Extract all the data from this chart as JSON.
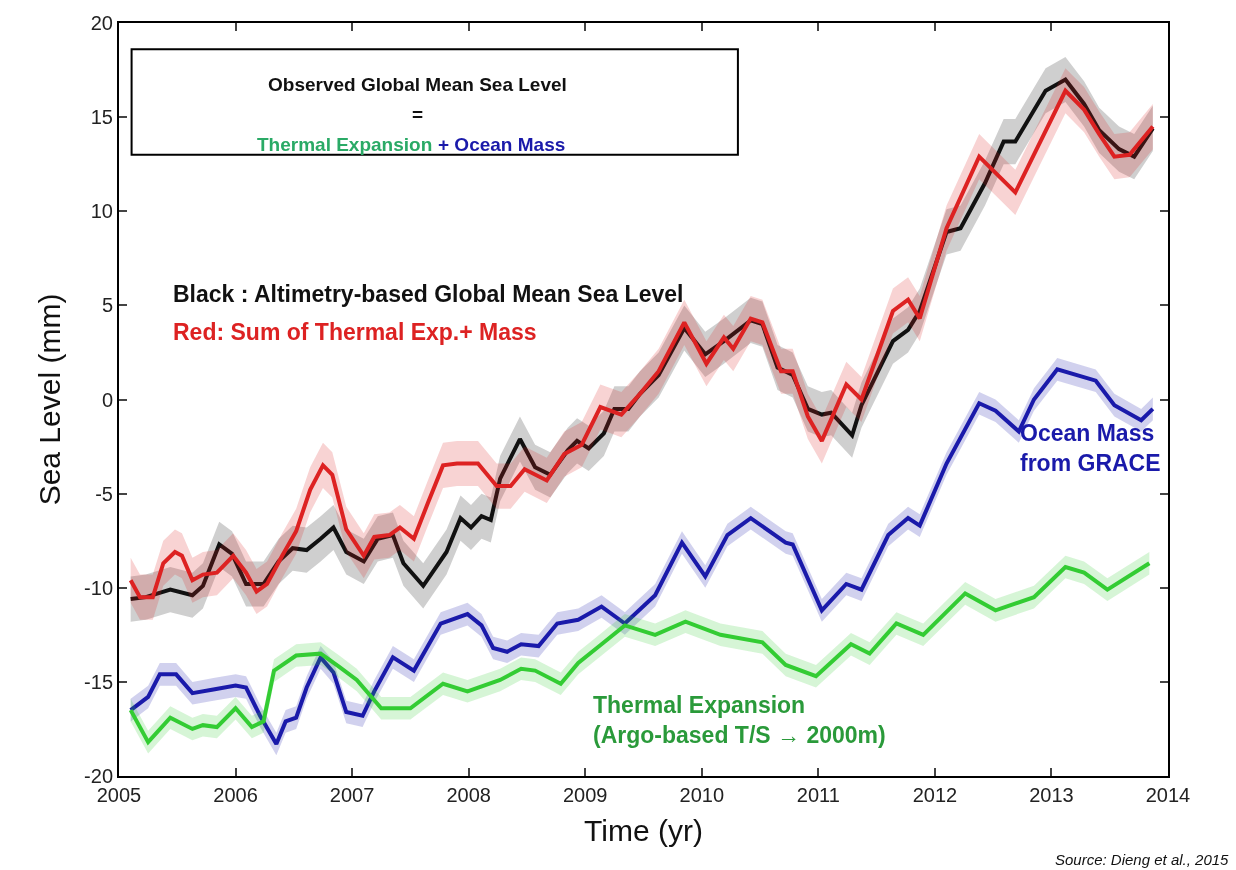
{
  "chart_data": {
    "type": "line",
    "xlabel": "Time (yr)",
    "ylabel": "Sea Level (mm)",
    "xlim": [
      2005,
      2014
    ],
    "xticks": [
      2005,
      2006,
      2007,
      2008,
      2009,
      2010,
      2011,
      2012,
      2013,
      2014
    ],
    "ylim": [
      -20,
      20
    ],
    "yticks": [
      -20,
      -15,
      -10,
      -5,
      0,
      5,
      10,
      15,
      20
    ],
    "grid": false,
    "legend": false,
    "marker": "none",
    "line_style": "solid",
    "annotations": [
      "Observed Global Mean Sea Level",
      "=",
      "Thermal Expansion",
      "+ Ocean Mass",
      "Source: Dieng et al., 2015"
    ],
    "series": [
      {
        "name": "Black : Altimetry-based Global Mean Sea Level",
        "color": "#111111",
        "x": [
          2005.1,
          2005.23,
          2005.44,
          2005.63,
          2005.72,
          2005.86,
          2005.97,
          2006.09,
          2006.24,
          2006.37,
          2006.49,
          2006.61,
          2006.73,
          2006.84,
          2006.95,
          2007.1,
          2007.22,
          2007.35,
          2007.44,
          2007.61,
          2007.81,
          2007.93,
          2008.02,
          2008.11,
          2008.19,
          2008.27,
          2008.44,
          2008.57,
          2008.7,
          2008.85,
          2008.93,
          2009.03,
          2009.16,
          2009.25,
          2009.37,
          2009.47,
          2009.63,
          2009.85,
          2010.03,
          2010.19,
          2010.42,
          2010.52,
          2010.65,
          2010.78,
          2010.91,
          2011.03,
          2011.11,
          2011.29,
          2011.37,
          2011.64,
          2011.77,
          2011.87,
          2012.1,
          2012.22,
          2012.43,
          2012.59,
          2012.69,
          2012.95,
          2013.12,
          2013.28,
          2013.41,
          2013.58,
          2013.71,
          2013.87
        ],
        "values": [
          -10.6,
          -10.5,
          -10.1,
          -10.4,
          -9.9,
          -7.7,
          -8.2,
          -9.8,
          -9.8,
          -8.6,
          -7.9,
          -8.0,
          -7.4,
          -6.8,
          -8.1,
          -8.6,
          -7.4,
          -7.2,
          -8.7,
          -9.9,
          -8.1,
          -6.3,
          -6.8,
          -6.2,
          -6.4,
          -4.2,
          -2.1,
          -3.6,
          -4.0,
          -2.7,
          -2.2,
          -2.6,
          -1.8,
          -0.5,
          -0.5,
          0.3,
          1.3,
          3.8,
          2.4,
          3.1,
          4.2,
          4.0,
          1.7,
          1.3,
          -0.5,
          -0.8,
          -0.7,
          -1.9,
          -0.3,
          3.1,
          3.7,
          4.7,
          8.9,
          9.1,
          11.5,
          13.7,
          13.7,
          16.4,
          17.0,
          15.7,
          14.3,
          13.3,
          12.9,
          14.4
        ],
        "lower": [
          -11.8,
          -11.7,
          -11.3,
          -11.6,
          -11.1,
          -8.9,
          -9.4,
          -11.0,
          -11.0,
          -9.8,
          -9.1,
          -9.2,
          -8.6,
          -8.0,
          -9.3,
          -9.8,
          -8.6,
          -8.4,
          -9.9,
          -11.1,
          -9.3,
          -7.5,
          -8.0,
          -7.4,
          -7.6,
          -5.4,
          -3.3,
          -4.8,
          -5.2,
          -3.9,
          -3.4,
          -3.8,
          -3.0,
          -1.7,
          -1.7,
          -0.9,
          0.1,
          2.6,
          1.2,
          1.9,
          3.0,
          2.8,
          0.5,
          0.1,
          -1.7,
          -2.0,
          -1.9,
          -3.1,
          -1.5,
          1.9,
          2.5,
          3.5,
          7.7,
          7.9,
          10.3,
          12.5,
          12.5,
          15.2,
          15.8,
          14.5,
          13.1,
          12.1,
          11.7,
          13.2
        ],
        "upper": [
          -9.4,
          -9.3,
          -8.9,
          -9.2,
          -8.7,
          -6.5,
          -7.0,
          -8.6,
          -8.6,
          -7.4,
          -6.7,
          -6.8,
          -6.2,
          -5.6,
          -6.9,
          -7.4,
          -6.2,
          -6.0,
          -7.5,
          -8.7,
          -6.9,
          -5.1,
          -5.6,
          -5.0,
          -5.2,
          -3.0,
          -0.9,
          -2.4,
          -2.8,
          -1.5,
          -1.0,
          -1.4,
          -0.6,
          0.7,
          0.7,
          1.5,
          2.5,
          5.0,
          3.6,
          4.3,
          5.4,
          5.2,
          2.9,
          2.5,
          0.7,
          0.4,
          0.5,
          -0.7,
          0.9,
          4.3,
          4.9,
          5.9,
          10.1,
          10.3,
          12.7,
          14.9,
          14.9,
          17.6,
          18.2,
          16.9,
          15.5,
          14.5,
          14.1,
          15.6
        ]
      },
      {
        "name": "Red: Sum of Thermal Exp.+ Mass",
        "color": "#dd2222",
        "x": [
          2005.1,
          2005.18,
          2005.29,
          2005.38,
          2005.48,
          2005.54,
          2005.63,
          2005.72,
          2005.84,
          2005.98,
          2006.09,
          2006.18,
          2006.27,
          2006.4,
          2006.52,
          2006.64,
          2006.75,
          2006.83,
          2006.95,
          2007.1,
          2007.19,
          2007.32,
          2007.41,
          2007.53,
          2007.65,
          2007.78,
          2007.9,
          2008.08,
          2008.24,
          2008.36,
          2008.48,
          2008.67,
          2008.82,
          2008.97,
          2009.13,
          2009.31,
          2009.47,
          2009.63,
          2009.85,
          2010.04,
          2010.19,
          2010.27,
          2010.42,
          2010.52,
          2010.68,
          2010.78,
          2010.91,
          2011.03,
          2011.24,
          2011.37,
          2011.64,
          2011.77,
          2011.87,
          2012.1,
          2012.38,
          2012.69,
          2013.12,
          2013.28,
          2013.41,
          2013.54,
          2013.67,
          2013.87
        ],
        "values": [
          -9.6,
          -10.5,
          -10.5,
          -8.7,
          -8.1,
          -8.3,
          -9.6,
          -9.3,
          -9.2,
          -8.3,
          -9.2,
          -10.2,
          -9.8,
          -8.3,
          -7.0,
          -4.8,
          -3.5,
          -4.0,
          -6.9,
          -8.3,
          -7.3,
          -7.2,
          -6.8,
          -7.4,
          -5.5,
          -3.5,
          -3.4,
          -3.4,
          -4.6,
          -4.6,
          -3.7,
          -4.3,
          -2.9,
          -2.4,
          -0.4,
          -0.8,
          0.3,
          1.5,
          4.1,
          1.9,
          3.3,
          2.7,
          4.3,
          4.1,
          1.5,
          1.5,
          -0.9,
          -2.2,
          0.8,
          0.0,
          4.7,
          5.3,
          4.3,
          9.1,
          12.9,
          11.0,
          16.4,
          15.4,
          14.1,
          12.9,
          13.0,
          14.5
        ],
        "lower": [
          -10.8,
          -11.7,
          -11.7,
          -9.9,
          -9.3,
          -9.5,
          -10.8,
          -10.5,
          -10.4,
          -9.5,
          -10.4,
          -11.4,
          -11.0,
          -9.5,
          -8.2,
          -6.0,
          -4.7,
          -5.2,
          -8.1,
          -9.5,
          -8.5,
          -8.4,
          -8.0,
          -8.6,
          -6.7,
          -4.7,
          -4.6,
          -4.6,
          -5.8,
          -5.8,
          -4.9,
          -5.5,
          -4.1,
          -3.6,
          -1.6,
          -2.0,
          -0.9,
          0.3,
          2.9,
          0.7,
          2.1,
          1.5,
          3.1,
          2.9,
          0.3,
          0.3,
          -2.1,
          -3.4,
          -0.4,
          -1.2,
          3.5,
          4.1,
          3.1,
          7.9,
          11.7,
          9.8,
          15.2,
          14.2,
          12.9,
          11.7,
          11.8,
          13.3
        ],
        "upper": [
          -8.4,
          -9.3,
          -9.3,
          -7.5,
          -6.9,
          -7.1,
          -8.4,
          -8.1,
          -8.0,
          -7.1,
          -8.0,
          -9.0,
          -8.6,
          -7.1,
          -5.8,
          -3.6,
          -2.3,
          -2.8,
          -5.7,
          -7.1,
          -6.1,
          -6.0,
          -5.6,
          -6.2,
          -4.3,
          -2.3,
          -2.2,
          -2.2,
          -3.4,
          -3.4,
          -2.5,
          -3.1,
          -1.7,
          -1.2,
          0.8,
          0.4,
          1.5,
          2.7,
          5.3,
          3.1,
          4.5,
          3.9,
          5.5,
          5.3,
          2.7,
          2.7,
          0.3,
          -1.0,
          2.0,
          1.2,
          5.9,
          6.5,
          5.5,
          10.3,
          14.1,
          12.2,
          17.6,
          16.6,
          15.3,
          14.1,
          14.2,
          15.7
        ]
      },
      {
        "name": "Ocean Mass\nfrom GRACE",
        "color": "#1a1aaa",
        "x": [
          2005.1,
          2005.25,
          2005.35,
          2005.49,
          2005.63,
          2005.81,
          2006.0,
          2006.09,
          2006.21,
          2006.35,
          2006.43,
          2006.52,
          2006.61,
          2006.73,
          2006.84,
          2006.95,
          2007.09,
          2007.19,
          2007.35,
          2007.53,
          2007.76,
          2007.99,
          2008.11,
          2008.21,
          2008.33,
          2008.45,
          2008.6,
          2008.76,
          2008.94,
          2009.14,
          2009.34,
          2009.6,
          2009.83,
          2010.03,
          2010.22,
          2010.42,
          2010.72,
          2010.78,
          2011.03,
          2011.24,
          2011.37,
          2011.6,
          2011.77,
          2011.87,
          2012.1,
          2012.38,
          2012.52,
          2012.72,
          2012.85,
          2013.05,
          2013.38,
          2013.54,
          2013.77,
          2013.87
        ],
        "values": [
          -16.5,
          -15.8,
          -14.6,
          -14.6,
          -15.6,
          -15.4,
          -15.2,
          -15.3,
          -16.8,
          -18.3,
          -17.1,
          -16.9,
          -15.3,
          -13.7,
          -14.5,
          -16.6,
          -16.8,
          -15.5,
          -13.7,
          -14.4,
          -11.9,
          -11.4,
          -12.0,
          -13.2,
          -13.4,
          -13.0,
          -13.1,
          -11.9,
          -11.7,
          -11.0,
          -11.9,
          -10.4,
          -7.6,
          -9.4,
          -7.2,
          -6.3,
          -7.6,
          -7.7,
          -11.2,
          -9.8,
          -10.1,
          -7.2,
          -6.3,
          -6.7,
          -3.4,
          -0.2,
          -0.6,
          -1.7,
          0.0,
          1.6,
          1.0,
          -0.3,
          -1.1,
          -0.5
        ],
        "lower": [
          -17.1,
          -16.4,
          -15.2,
          -15.2,
          -16.2,
          -16.0,
          -15.8,
          -15.9,
          -17.4,
          -18.9,
          -17.7,
          -17.5,
          -15.9,
          -14.3,
          -15.1,
          -17.2,
          -17.4,
          -16.1,
          -14.3,
          -15.0,
          -12.5,
          -12.0,
          -12.6,
          -13.8,
          -14.0,
          -13.6,
          -13.7,
          -12.5,
          -12.3,
          -11.6,
          -12.5,
          -11.0,
          -8.2,
          -10.0,
          -7.8,
          -6.9,
          -8.2,
          -8.3,
          -11.8,
          -10.4,
          -10.7,
          -7.8,
          -6.9,
          -7.3,
          -4.0,
          -0.8,
          -1.2,
          -2.3,
          -0.6,
          1.0,
          0.4,
          -0.9,
          -1.7,
          -1.1
        ],
        "upper": [
          -15.9,
          -15.2,
          -14.0,
          -14.0,
          -15.0,
          -14.8,
          -14.6,
          -14.7,
          -16.2,
          -17.7,
          -16.5,
          -16.3,
          -14.7,
          -13.1,
          -13.9,
          -16.0,
          -16.2,
          -14.9,
          -13.1,
          -13.8,
          -11.3,
          -10.8,
          -11.4,
          -12.6,
          -12.8,
          -12.4,
          -12.5,
          -11.3,
          -11.1,
          -10.4,
          -11.3,
          -9.8,
          -7.0,
          -8.8,
          -6.6,
          -5.7,
          -7.0,
          -7.1,
          -10.6,
          -9.2,
          -9.5,
          -6.6,
          -5.7,
          -6.1,
          -2.8,
          0.4,
          0.0,
          -1.1,
          0.6,
          2.2,
          1.6,
          0.3,
          -0.5,
          0.1
        ]
      },
      {
        "name": "Thermal Expansion\n(Argo-based T/S → 2000m)",
        "color": "#33cc33",
        "x": [
          2005.1,
          2005.25,
          2005.44,
          2005.63,
          2005.72,
          2005.84,
          2006.0,
          2006.14,
          2006.24,
          2006.33,
          2006.52,
          2006.73,
          2006.89,
          2007.04,
          2007.25,
          2007.5,
          2007.78,
          2007.99,
          2008.27,
          2008.45,
          2008.57,
          2008.79,
          2008.94,
          2009.14,
          2009.34,
          2009.6,
          2009.86,
          2010.16,
          2010.52,
          2010.72,
          2010.98,
          2011.28,
          2011.44,
          2011.67,
          2011.9,
          2012.26,
          2012.52,
          2012.85,
          2013.12,
          2013.28,
          2013.48,
          2013.84
        ],
        "values": [
          -16.5,
          -18.2,
          -16.9,
          -17.5,
          -17.3,
          -17.4,
          -16.4,
          -17.4,
          -17.1,
          -14.4,
          -13.6,
          -13.5,
          -14.2,
          -14.9,
          -16.4,
          -16.4,
          -15.1,
          -15.5,
          -14.9,
          -14.3,
          -14.4,
          -15.1,
          -14.0,
          -13.0,
          -12.0,
          -12.5,
          -11.8,
          -12.5,
          -12.9,
          -14.1,
          -14.7,
          -13.0,
          -13.5,
          -11.9,
          -12.5,
          -10.3,
          -11.2,
          -10.5,
          -8.9,
          -9.2,
          -10.1,
          -8.7
        ],
        "lower": [
          -17.1,
          -18.8,
          -17.5,
          -18.1,
          -17.9,
          -18.0,
          -17.0,
          -18.0,
          -17.7,
          -15.0,
          -14.2,
          -14.1,
          -14.8,
          -15.5,
          -17.0,
          -17.0,
          -15.7,
          -16.1,
          -15.5,
          -14.9,
          -15.0,
          -15.7,
          -14.6,
          -13.6,
          -12.6,
          -13.1,
          -12.4,
          -13.1,
          -13.5,
          -14.7,
          -15.3,
          -13.6,
          -14.1,
          -12.5,
          -13.1,
          -10.9,
          -11.8,
          -11.1,
          -9.5,
          -9.8,
          -10.7,
          -9.3
        ],
        "upper": [
          -15.9,
          -17.6,
          -16.3,
          -16.9,
          -16.7,
          -16.8,
          -15.8,
          -16.8,
          -16.5,
          -13.8,
          -13.0,
          -12.9,
          -13.6,
          -14.3,
          -15.8,
          -15.8,
          -14.5,
          -14.9,
          -14.3,
          -13.7,
          -13.8,
          -14.5,
          -13.4,
          -12.4,
          -11.4,
          -11.9,
          -11.2,
          -11.9,
          -12.3,
          -13.5,
          -14.1,
          -12.4,
          -12.9,
          -11.3,
          -11.9,
          -9.7,
          -10.6,
          -9.9,
          -8.3,
          -8.6,
          -9.5,
          -8.1
        ]
      }
    ]
  }
}
